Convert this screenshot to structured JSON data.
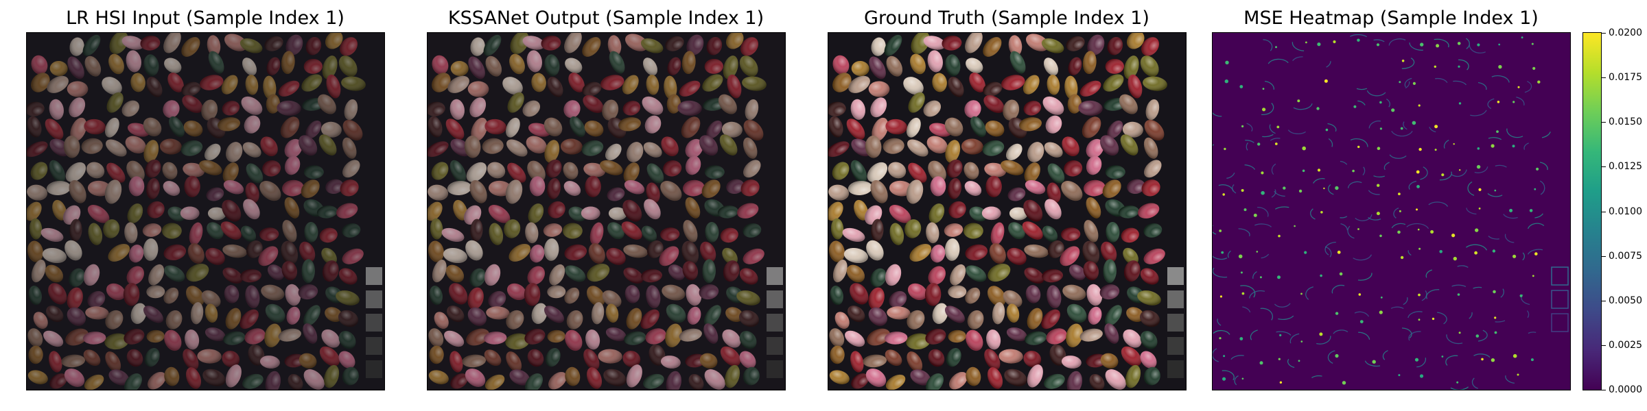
{
  "panels": [
    {
      "title": "LR HSI Input (Sample Index 1)",
      "image": "jellybeans-low-resolution"
    },
    {
      "title": "KSSANet Output (Sample Index 1)",
      "image": "jellybeans-reconstructed"
    },
    {
      "title": "Ground Truth (Sample Index 1)",
      "image": "jellybeans-ground-truth"
    },
    {
      "title": "MSE Heatmap (Sample Index 1)",
      "image": "mse-error-heatmap"
    }
  ],
  "colorbar": {
    "colormap": "viridis",
    "range": [
      0.0,
      0.02
    ],
    "ticks": [
      "0.0000",
      "0.0025",
      "0.0050",
      "0.0075",
      "0.0100",
      "0.0125",
      "0.0150",
      "0.0175",
      "0.0200"
    ]
  },
  "colors": {
    "background_dark": "#16141a",
    "heatmap_base": "#440154",
    "bean_palette": [
      "#7a1420",
      "#9b1e2a",
      "#5a0e18",
      "#b8405a",
      "#d06a8a",
      "#8a5a20",
      "#a87a2c",
      "#6e6a22",
      "#1e3a2a",
      "#2a4a36",
      "#d8c8b8",
      "#b89a88",
      "#c07a70",
      "#7a3a2a",
      "#3a1a1a",
      "#e0a0b0",
      "#5c2a44",
      "#8e6a56"
    ]
  }
}
